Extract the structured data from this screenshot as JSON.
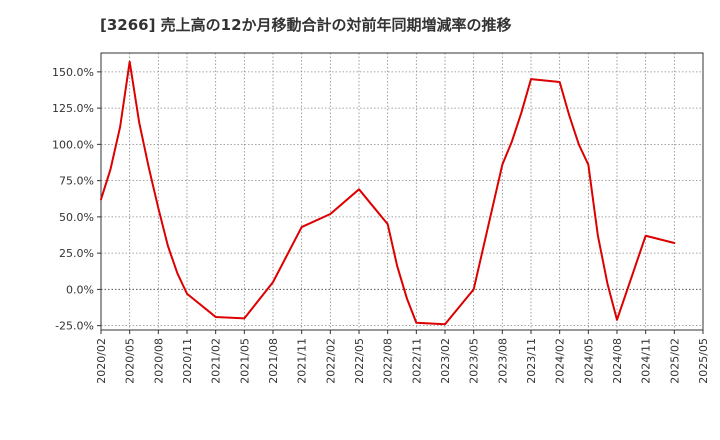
{
  "chart_data": {
    "type": "line",
    "title": "[3266]  売上高の12か月移動合計の対前年同期増減率の推移",
    "xlabel": "",
    "ylabel": "",
    "ylim": [
      -28,
      163
    ],
    "grid": true,
    "x_ticks": [
      "2020/02",
      "2020/05",
      "2020/08",
      "2020/11",
      "2021/02",
      "2021/05",
      "2021/08",
      "2021/11",
      "2022/02",
      "2022/05",
      "2022/08",
      "2022/11",
      "2023/02",
      "2023/05",
      "2023/08",
      "2023/11",
      "2024/02",
      "2024/05",
      "2024/08",
      "2024/11",
      "2025/02",
      "2025/05"
    ],
    "y_ticks": [
      {
        "value": -25,
        "label": "-25.0%"
      },
      {
        "value": 0,
        "label": "0.0%"
      },
      {
        "value": 25,
        "label": "25.0%"
      },
      {
        "value": 50,
        "label": "50.0%"
      },
      {
        "value": 75,
        "label": "75.0%"
      },
      {
        "value": 100,
        "label": "100.0%"
      },
      {
        "value": 125,
        "label": "125.0%"
      },
      {
        "value": 150,
        "label": "150.0%"
      }
    ],
    "series": [
      {
        "name": "対前年同期増減率",
        "color": "#dd0000",
        "points": [
          {
            "x": "2020/02",
            "y": 62
          },
          {
            "x": "2020/03",
            "y": 83
          },
          {
            "x": "2020/04",
            "y": 112
          },
          {
            "x": "2020/05",
            "y": 157
          },
          {
            "x": "2020/06",
            "y": 115
          },
          {
            "x": "2020/07",
            "y": 84
          },
          {
            "x": "2020/08",
            "y": 56
          },
          {
            "x": "2020/09",
            "y": 30
          },
          {
            "x": "2020/10",
            "y": 11
          },
          {
            "x": "2020/11",
            "y": -3
          },
          {
            "x": "2021/02",
            "y": -19
          },
          {
            "x": "2021/05",
            "y": -20
          },
          {
            "x": "2021/08",
            "y": 5
          },
          {
            "x": "2021/11",
            "y": 43
          },
          {
            "x": "2022/02",
            "y": 52
          },
          {
            "x": "2022/05",
            "y": 69
          },
          {
            "x": "2022/08",
            "y": 45
          },
          {
            "x": "2022/09",
            "y": 16
          },
          {
            "x": "2022/10",
            "y": -6
          },
          {
            "x": "2022/11",
            "y": -23
          },
          {
            "x": "2023/02",
            "y": -24
          },
          {
            "x": "2023/05",
            "y": 0
          },
          {
            "x": "2023/08",
            "y": 86
          },
          {
            "x": "2023/09",
            "y": 102
          },
          {
            "x": "2023/10",
            "y": 122
          },
          {
            "x": "2023/11",
            "y": 145
          },
          {
            "x": "2024/02",
            "y": 143
          },
          {
            "x": "2024/03",
            "y": 120
          },
          {
            "x": "2024/04",
            "y": 100
          },
          {
            "x": "2024/05",
            "y": 86
          },
          {
            "x": "2024/06",
            "y": 37
          },
          {
            "x": "2024/07",
            "y": 4
          },
          {
            "x": "2024/08",
            "y": -21
          },
          {
            "x": "2024/11",
            "y": 37
          },
          {
            "x": "2025/02",
            "y": 32
          }
        ]
      }
    ],
    "colors": {
      "line": "#dd0000",
      "grid": "#888888",
      "zero_line": "#555555",
      "axis": "#333333"
    }
  }
}
